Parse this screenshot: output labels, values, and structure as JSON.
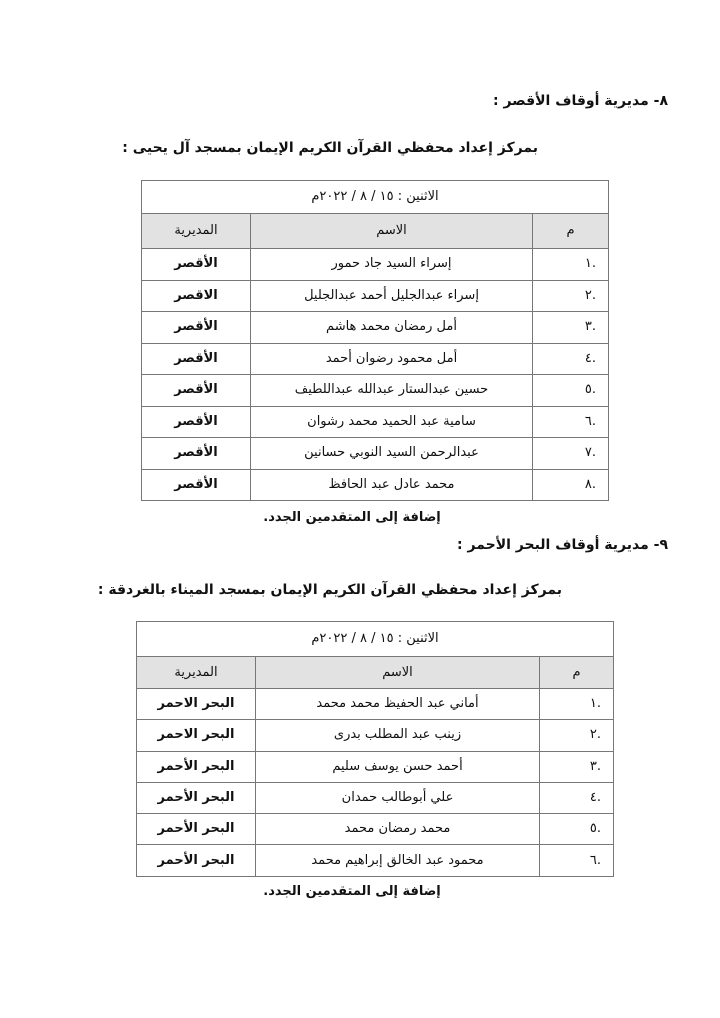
{
  "sections": [
    {
      "heading": "٨- مديرية أوقاف الأقصر :",
      "subheading": "بمركز إعداد محفظي القرآن الكريم الإيمان بمسجد آل يحيى :",
      "date": "الاثنين : ١٥ / ٨ / ٢٠٢٢م",
      "columns": [
        "م",
        "الاسم",
        "المديرية"
      ],
      "rows": [
        {
          "num": ".١",
          "name": "إسراء السيد جاد حمور",
          "directorate": "الأقصر"
        },
        {
          "num": ".٢",
          "name": "إسراء عبدالجليل أحمد عبدالجليل",
          "directorate": "الاقصر"
        },
        {
          "num": ".٣",
          "name": "أمل رمضان محمد هاشم",
          "directorate": "الأقصر"
        },
        {
          "num": ".٤",
          "name": "أمل محمود رضوان أحمد",
          "directorate": "الأقصر"
        },
        {
          "num": ".٥",
          "name": "حسين عبدالستار عبدالله عبداللطيف",
          "directorate": "الأقصر"
        },
        {
          "num": ".٦",
          "name": "سامية عبد الحميد محمد رشوان",
          "directorate": "الأقصر"
        },
        {
          "num": ".٧",
          "name": "عبدالرحمن السيد النوبي حسانين",
          "directorate": "الأقصر"
        },
        {
          "num": ".٨",
          "name": "محمد عادل عبد الحافظ",
          "directorate": "الأقصر"
        }
      ],
      "note": "إضافة إلى المتقدمين الجدد."
    },
    {
      "heading": "٩- مديرية أوقاف البحر الأحمر :",
      "subheading": "بمركز إعداد محفظي القرآن الكريم الإيمان بمسجد الميناء بالغردقة :",
      "date": "الاثنين : ١٥ / ٨ / ٢٠٢٢م",
      "columns": [
        "م",
        "الاسم",
        "المديرية"
      ],
      "rows": [
        {
          "num": ".١",
          "name": "أماني عبد الحفيظ محمد محمد",
          "directorate": "البحر الاحمر"
        },
        {
          "num": ".٢",
          "name": "زينب عبد المطلب بدرى",
          "directorate": "البحر الاحمر"
        },
        {
          "num": ".٣",
          "name": "أحمد حسن يوسف سليم",
          "directorate": "البحر الأحمر"
        },
        {
          "num": ".٤",
          "name": "علي أبوطالب حمدان",
          "directorate": "البحر الأحمر"
        },
        {
          "num": ".٥",
          "name": "محمد رمضان محمد",
          "directorate": "البحر الأحمر"
        },
        {
          "num": ".٦",
          "name": "محمود عبد الخالق إبراهيم محمد",
          "directorate": "البحر الأحمر"
        }
      ],
      "note": "إضافة إلى المتقدمين الجدد."
    }
  ]
}
